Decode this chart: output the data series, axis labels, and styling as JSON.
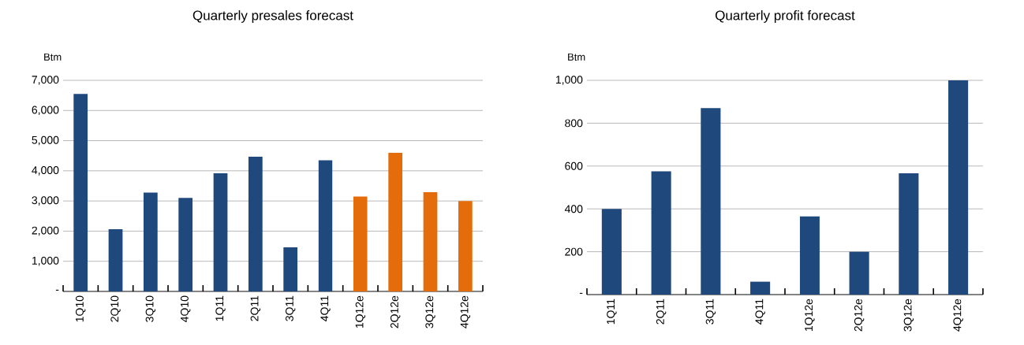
{
  "chart_data": [
    {
      "type": "bar",
      "title": "Quarterly presales forecast",
      "ylabel": "Btm",
      "categories": [
        "1Q10",
        "2Q10",
        "3Q10",
        "4Q10",
        "1Q11",
        "2Q11",
        "3Q11",
        "4Q11",
        "1Q12e",
        "2Q12e",
        "3Q12e",
        "4Q12e"
      ],
      "values": [
        6550,
        2060,
        3280,
        3100,
        3920,
        4470,
        1460,
        4350,
        3150,
        4600,
        3290,
        3000
      ],
      "colors": [
        "#1f497d",
        "#1f497d",
        "#1f497d",
        "#1f497d",
        "#1f497d",
        "#1f497d",
        "#1f497d",
        "#1f497d",
        "#e46c0a",
        "#e46c0a",
        "#e46c0a",
        "#e46c0a"
      ],
      "ylim": [
        0,
        7000
      ],
      "yticks": [
        {
          "value": 0,
          "label": "-"
        },
        {
          "value": 1000,
          "label": "1,000"
        },
        {
          "value": 2000,
          "label": "2,000"
        },
        {
          "value": 3000,
          "label": "3,000"
        },
        {
          "value": 4000,
          "label": "4,000"
        },
        {
          "value": 5000,
          "label": "5,000"
        },
        {
          "value": 6000,
          "label": "6,000"
        },
        {
          "value": 7000,
          "label": "7,000"
        }
      ],
      "grid": "y"
    },
    {
      "type": "bar",
      "title": "Quarterly profit forecast",
      "ylabel": "Btm",
      "categories": [
        "1Q11",
        "2Q11",
        "3Q11",
        "4Q11",
        "1Q12e",
        "2Q12e",
        "3Q12e",
        "4Q12e"
      ],
      "values": [
        400,
        575,
        870,
        61,
        365,
        200,
        566,
        1000
      ],
      "colors": [
        "#1f497d",
        "#1f497d",
        "#1f497d",
        "#1f497d",
        "#1f497d",
        "#1f497d",
        "#1f497d",
        "#1f497d"
      ],
      "ylim": [
        0,
        1000
      ],
      "yticks": [
        {
          "value": 0,
          "label": "-"
        },
        {
          "value": 200,
          "label": "200"
        },
        {
          "value": 400,
          "label": "400"
        },
        {
          "value": 600,
          "label": "600"
        },
        {
          "value": 800,
          "label": "800"
        },
        {
          "value": 1000,
          "label": "1,000"
        }
      ],
      "grid": "y"
    }
  ]
}
